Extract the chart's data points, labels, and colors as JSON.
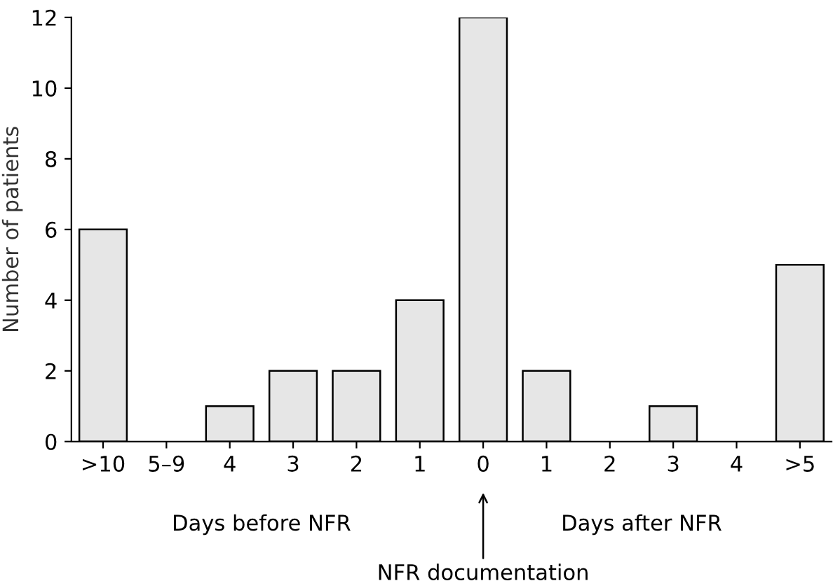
{
  "chart_data": {
    "type": "bar",
    "ylabel": "Number of patients",
    "categories": [
      ">10",
      "5–9",
      "4",
      "3",
      "2",
      "1",
      "0",
      "1",
      "2",
      "3",
      "4",
      ">5"
    ],
    "values": [
      6,
      0,
      1,
      2,
      2,
      4,
      12,
      2,
      0,
      1,
      0,
      5
    ],
    "color": "#e6e6e6",
    "ylim": [
      0,
      12
    ],
    "yticks": [
      0,
      2,
      4,
      6,
      8,
      10,
      12
    ],
    "grid": false,
    "annotations": [
      "Days before NFR",
      "Days after NFR",
      "NFR documentation"
    ]
  }
}
